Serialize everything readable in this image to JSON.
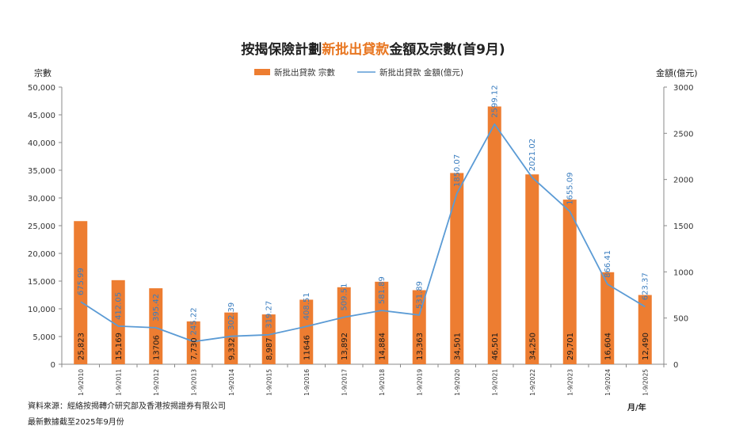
{
  "chart_data": {
    "type": "bar",
    "title_parts": [
      "按揭保險計劃",
      "新批出貸款",
      "金額及宗數(首9月)"
    ],
    "title_colors": [
      "#222222",
      "#e87722",
      "#222222"
    ],
    "categories": [
      "1-9/2010",
      "1-9/2011",
      "1-9/2012",
      "1-9/2013",
      "1-9/2014",
      "1-9/2015",
      "1-9/2016",
      "1-9/2017",
      "1-9/2018",
      "1-9/2019",
      "1-9/2020",
      "1-9/2021",
      "1-9/2022",
      "1-9/2023",
      "1-9/2024",
      "1-9/2025"
    ],
    "series": [
      {
        "name": "新批出貸款 宗數",
        "type": "bar",
        "axis": "left",
        "color": "#ed7d31",
        "values": [
          25823,
          15169,
          13706,
          7730,
          9332,
          8987,
          11646,
          13892,
          14884,
          13363,
          34501,
          46501,
          34250,
          29701,
          16604,
          12490
        ],
        "labels": [
          "25,823",
          "15,169",
          "13706",
          "7,730",
          "9,332",
          "8,987",
          "11646",
          "13,892",
          "14,884",
          "13,363",
          "34,501",
          "46,501",
          "34,250",
          "29,701",
          "16,604",
          "12,490"
        ]
      },
      {
        "name": "新批出貸款 金額(億元)",
        "type": "line",
        "axis": "right",
        "color": "#5b9bd5",
        "values": [
          675.99,
          412.05,
          395.42,
          245.22,
          302.39,
          319.27,
          408.51,
          509.51,
          581.89,
          531.89,
          1850.07,
          2599.12,
          2021.02,
          1655.09,
          866.41,
          623.37
        ],
        "labels": [
          "675.99",
          "412.05",
          "395.42",
          "245.22",
          "302.39",
          "319.27",
          "408.51",
          "509.51",
          "581.89",
          "531.89",
          "1850.07",
          "2599.12",
          "2021.02",
          "1655.09",
          "866.41",
          "623.37"
        ]
      }
    ],
    "y_left": {
      "label": "宗數",
      "range": [
        0,
        50000
      ],
      "ticks": [
        0,
        5000,
        10000,
        15000,
        20000,
        25000,
        30000,
        35000,
        40000,
        45000,
        50000
      ],
      "tick_labels": [
        "0",
        "5,000",
        "10,000",
        "15,000",
        "20,000",
        "25,000",
        "30,000",
        "35,000",
        "40,000",
        "45,000",
        "50,000"
      ]
    },
    "y_right": {
      "label": "金額(億元)",
      "range": [
        0,
        3000
      ],
      "ticks": [
        0,
        500,
        1000,
        1500,
        2000,
        2500,
        3000
      ],
      "tick_labels": [
        "0",
        "500",
        "1000",
        "1500",
        "2000",
        "2500",
        "3000"
      ]
    },
    "x_unit": "月/年",
    "legend_position": "top-center",
    "grid": false
  },
  "notes": {
    "source": "資料來源：經絡按揭轉介研究部及香港按揭證券有限公司",
    "cutoff": "最新數據截至2025年9月份"
  }
}
